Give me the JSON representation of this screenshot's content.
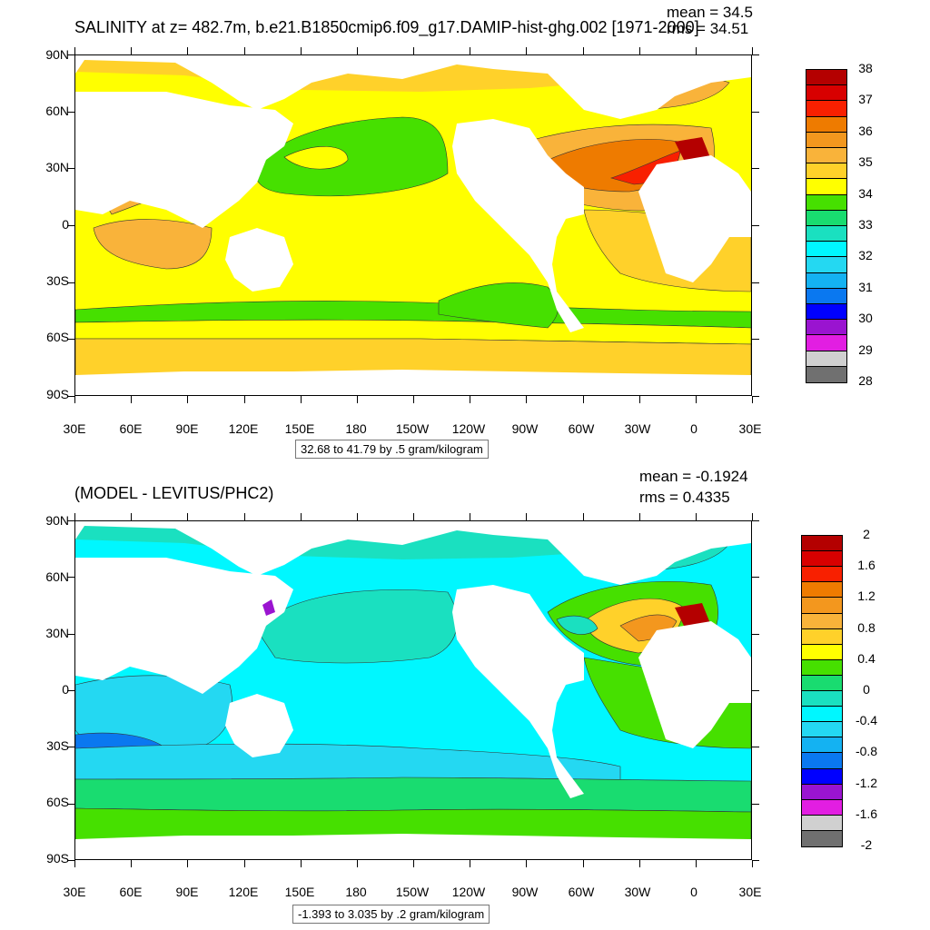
{
  "panel_top": {
    "title": "SALINITY at z= 482.7m, b.e21.B1850cmip6.f09_g17.DAMIP-hist-ghg.002 [1971-2000]",
    "mean_text": "mean = 34.5",
    "rms_text": "rms = 34.51",
    "contour_info": "32.68 to 41.79 by .5 gram/kilogram",
    "colorbar_labels": [
      "38",
      "37",
      "36",
      "35",
      "34",
      "33",
      "32",
      "31",
      "30",
      "29",
      "28"
    ],
    "colorbar_colors": [
      "#b40000",
      "#d80000",
      "#f82000",
      "#ee7b00",
      "#f3971e",
      "#f9b33a",
      "#ffd12a",
      "#ffff00",
      "#46e000",
      "#19dc70",
      "#1ae0c0",
      "#00f7ff",
      "#24d8f2",
      "#14b2f2",
      "#0a78f0",
      "#0000ff",
      "#9a14d0",
      "#e21ee2",
      "#d0d0d0",
      "#707070"
    ]
  },
  "panel_bottom": {
    "title": "(MODEL - LEVITUS/PHC2)",
    "mean_text": "mean = -0.1924",
    "rms_text": "rms = 0.4335",
    "contour_info": "-1.393 to 3.035 by .2 gram/kilogram",
    "colorbar_labels": [
      "2",
      "1.6",
      "1.2",
      "0.8",
      "0.4",
      "0",
      "-0.4",
      "-0.8",
      "-1.2",
      "-1.6",
      "-2"
    ],
    "colorbar_colors": [
      "#b40000",
      "#d80000",
      "#f82000",
      "#ee7b00",
      "#f3971e",
      "#f9b33a",
      "#ffd12a",
      "#ffff00",
      "#46e000",
      "#19dc70",
      "#1ae0c0",
      "#00f7ff",
      "#24d8f2",
      "#14b2f2",
      "#0a78f0",
      "#0000ff",
      "#9a14d0",
      "#e21ee2",
      "#d0d0d0",
      "#707070"
    ]
  },
  "lat_labels": [
    "90N",
    "60N",
    "30N",
    "0",
    "30S",
    "60S",
    "90S"
  ],
  "lon_labels": [
    "30E",
    "60E",
    "90E",
    "120E",
    "150E",
    "180",
    "150W",
    "120W",
    "90W",
    "60W",
    "30W",
    "0",
    "30E"
  ],
  "colors": {
    "land": "#ffffff",
    "frame": "#000000"
  }
}
